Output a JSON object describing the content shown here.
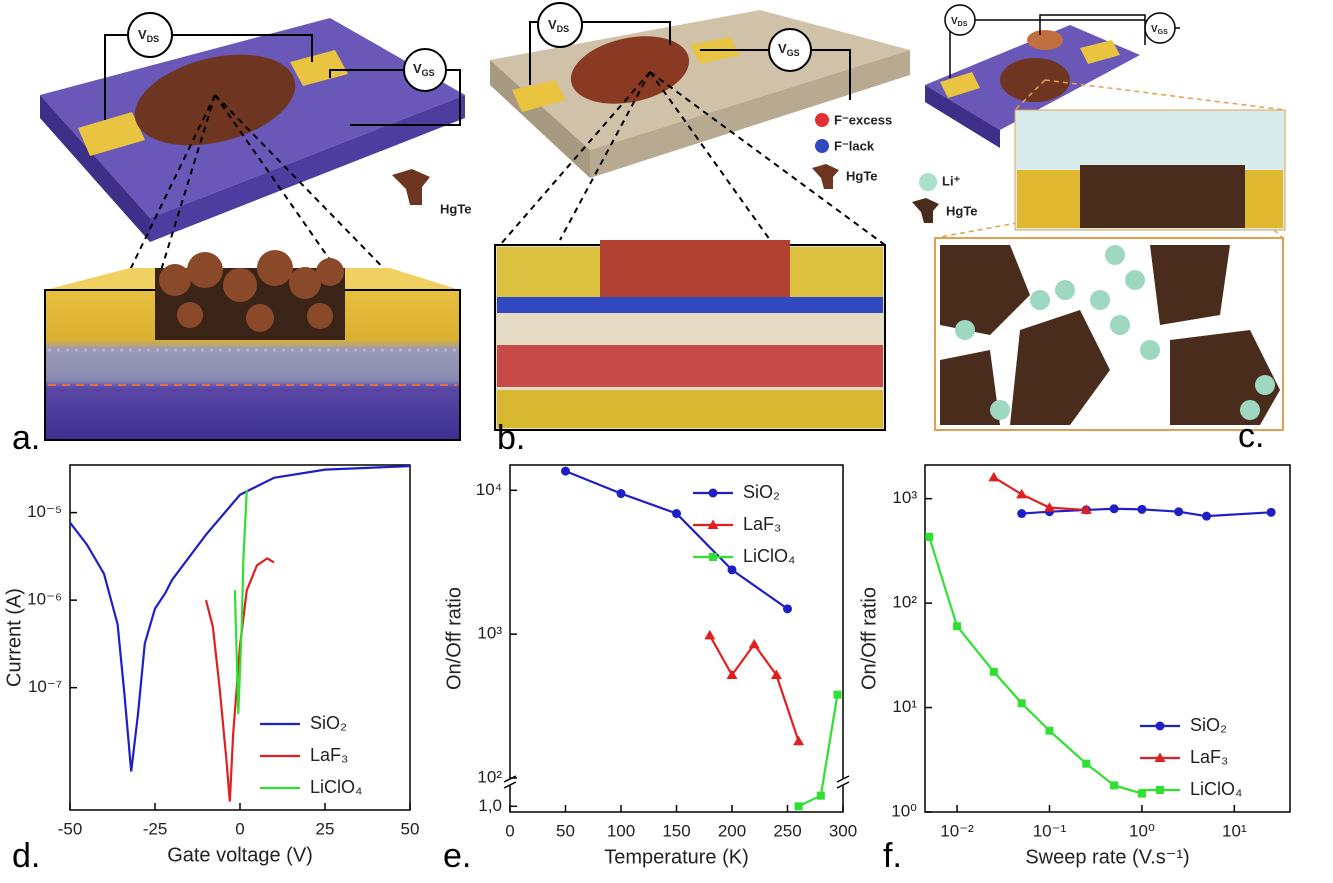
{
  "panels": [
    "a.",
    "b.",
    "c.",
    "d.",
    "e.",
    "f."
  ],
  "illustrations": {
    "a": {
      "vds": [
        "V",
        "DS"
      ],
      "vgs": [
        "V",
        "GS"
      ],
      "species": [
        "HgTe"
      ]
    },
    "b": {
      "vds": [
        "V",
        "DS"
      ],
      "vgs": [
        "V",
        "GS"
      ],
      "species": [
        "F⁻excess",
        "F⁻lack",
        "HgTe"
      ]
    },
    "c": {
      "vds": [
        "V",
        "DS"
      ],
      "vgs": [
        "V",
        "GS"
      ],
      "species": [
        "Li⁺",
        "HgTe"
      ]
    }
  },
  "chart_data": [
    {
      "type": "line",
      "xlabel": "Gate voltage (V)",
      "ylabel": "Current (A)",
      "xlim": [
        -50,
        50
      ],
      "ylim": [
        4e-09,
        3.5e-05
      ],
      "yscale": "log",
      "xticks": [
        -50,
        -25,
        0,
        25,
        50
      ],
      "yticks": [
        {
          "value": 1e-07,
          "label": "10⁻⁷"
        },
        {
          "value": 1e-06,
          "label": "10⁻⁶"
        },
        {
          "value": 1e-05,
          "label": "10⁻⁵"
        }
      ],
      "legend": "lower right",
      "series": [
        {
          "name": "SiO₂",
          "color": "#1f1fc8",
          "marker": "none",
          "x": [
            -50,
            -45,
            -40,
            -36,
            -34,
            -32,
            -30,
            -28,
            -25,
            -22,
            -20,
            -10,
            0,
            10,
            25,
            50
          ],
          "values": [
            7.7e-06,
            4.3e-06,
            2e-06,
            5.3e-07,
            8.5e-08,
            1.1e-08,
            5e-08,
            3.2e-07,
            8e-07,
            1.2e-06,
            1.7e-06,
            5.6e-06,
            1.6e-05,
            2.5e-05,
            3.1e-05,
            3.4e-05
          ]
        },
        {
          "name": "LaF₃",
          "color": "#e02020",
          "marker": "none",
          "x": [
            -10,
            -8,
            -6,
            -4,
            -3,
            -2,
            0,
            2,
            5,
            8,
            10
          ],
          "values": [
            1e-06,
            5e-07,
            1e-07,
            1.5e-08,
            5e-09,
            3e-08,
            3e-07,
            1.3e-06,
            2.5e-06,
            3e-06,
            2.7e-06
          ]
        },
        {
          "name": "LiClO₄",
          "color": "#30e030",
          "marker": "none",
          "x": [
            -1.5,
            -0.5,
            0.5,
            1,
            2
          ],
          "values": [
            1.3e-06,
            5e-08,
            5e-07,
            3e-06,
            1.8e-05
          ]
        }
      ]
    },
    {
      "type": "line",
      "xlabel": "Temperature (K)",
      "ylabel": "On/Off ratio",
      "xlim": [
        0,
        300
      ],
      "ylim": [
        0.95,
        15000
      ],
      "ybreak": [
        1.2,
        100
      ],
      "yscale": "log",
      "xticks": [
        0,
        50,
        100,
        150,
        200,
        250,
        300
      ],
      "yticks": [
        {
          "value": 1,
          "label": "1,0"
        },
        {
          "value": 100,
          "label": "10²"
        },
        {
          "value": 1000,
          "label": "10³"
        },
        {
          "value": 10000,
          "label": "10⁴"
        }
      ],
      "legend": "upper right",
      "series": [
        {
          "name": "SiO₂",
          "color": "#1f1fc8",
          "marker": "circle",
          "x": [
            50,
            100,
            150,
            200,
            250
          ],
          "values": [
            13600,
            9500,
            6900,
            2800,
            1500
          ]
        },
        {
          "name": "LaF₃",
          "color": "#e02020",
          "marker": "triangle",
          "x": [
            180,
            200,
            220,
            240,
            260
          ],
          "values": [
            980,
            520,
            850,
            520,
            180
          ]
        },
        {
          "name": "LiClO₄",
          "color": "#30e030",
          "marker": "square",
          "x": [
            260,
            280,
            295
          ],
          "values": [
            1.0,
            1.1,
            380
          ]
        }
      ]
    },
    {
      "type": "line",
      "xlabel": "Sweep rate (V.s⁻¹)",
      "ylabel": "On/Off ratio",
      "xlim": [
        0.0045,
        40
      ],
      "ylim": [
        1,
        2100
      ],
      "xscale": "log",
      "yscale": "log",
      "xticks": [
        {
          "value": 0.01,
          "label": "10⁻²"
        },
        {
          "value": 0.1,
          "label": "10⁻¹"
        },
        {
          "value": 1,
          "label": "10⁰"
        },
        {
          "value": 10,
          "label": "10¹"
        }
      ],
      "yticks": [
        {
          "value": 1,
          "label": "10⁰"
        },
        {
          "value": 10,
          "label": "10¹"
        },
        {
          "value": 100,
          "label": "10²"
        },
        {
          "value": 1000,
          "label": "10³"
        }
      ],
      "legend": "lower right",
      "series": [
        {
          "name": "SiO₂",
          "color": "#1f1fc8",
          "marker": "circle",
          "x": [
            0.05,
            0.1,
            0.25,
            0.5,
            1,
            2.5,
            5,
            25
          ],
          "values": [
            720,
            750,
            780,
            800,
            790,
            750,
            680,
            740
          ]
        },
        {
          "name": "LaF₃",
          "color": "#e02020",
          "marker": "triangle",
          "x": [
            0.025,
            0.05,
            0.1,
            0.25
          ],
          "values": [
            1600,
            1100,
            820,
            780
          ]
        },
        {
          "name": "LiClO₄",
          "color": "#30e030",
          "marker": "square",
          "x": [
            0.005,
            0.01,
            0.025,
            0.05,
            0.1,
            0.25,
            0.5,
            1
          ],
          "values": [
            430,
            60,
            22,
            11,
            6,
            2.9,
            1.8,
            1.5
          ]
        }
      ]
    }
  ]
}
